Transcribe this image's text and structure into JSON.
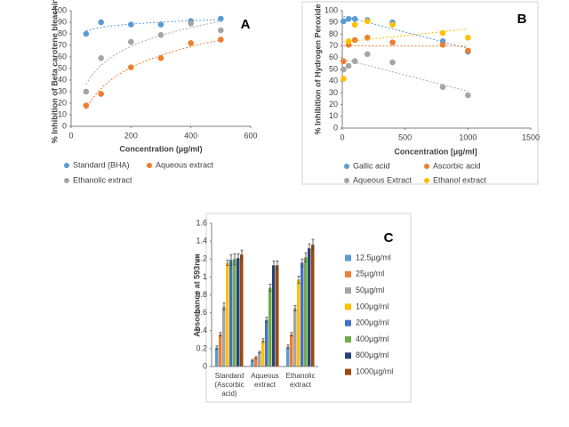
{
  "chart_data": [
    {
      "type": "scatter",
      "title": "A",
      "x_label": "Concentration (µg/ml)",
      "y_label": "% Inhibition of Beta carotene bleaching",
      "x": [
        50,
        100,
        200,
        300,
        400,
        500
      ],
      "xlim": [
        0,
        600
      ],
      "xticks": [
        0,
        200,
        400,
        600
      ],
      "ylim": [
        0,
        100
      ],
      "yticks": [
        0,
        10,
        20,
        30,
        40,
        50,
        60,
        70,
        80,
        90,
        100
      ],
      "trendline": "logarithmic",
      "series": [
        {
          "name": "Standard (BHA)",
          "color": "#5b9bd5",
          "values": [
            80,
            90,
            88,
            88,
            91,
            93
          ]
        },
        {
          "name": "Aqueous extract",
          "color": "#ed7d31",
          "values": [
            18,
            28,
            51,
            59,
            72,
            75
          ]
        },
        {
          "name": "Ethanolic extract",
          "color": "#a5a5a5",
          "values": [
            30,
            59,
            73,
            79,
            89,
            83
          ]
        }
      ]
    },
    {
      "type": "scatter",
      "title": "B",
      "x_label": "Concentration [µg/ml]",
      "y_label": "% Inhibition of Hydrogen Peroxide",
      "x": [
        10,
        50,
        100,
        200,
        400,
        800,
        1000
      ],
      "xlim": [
        0,
        1500
      ],
      "xticks": [
        0,
        500,
        1000,
        1500
      ],
      "ylim": [
        0,
        100
      ],
      "yticks": [
        0,
        10,
        20,
        30,
        40,
        50,
        60,
        70,
        80,
        90,
        100
      ],
      "trendline": "linear",
      "series": [
        {
          "name": "Gallic acid",
          "color": "#5b9bd5",
          "values": [
            91,
            93,
            93,
            92,
            90,
            74,
            65
          ]
        },
        {
          "name": "Ascorbic acid",
          "color": "#ed7d31",
          "values": [
            57,
            71,
            75,
            77,
            73,
            71,
            66
          ]
        },
        {
          "name": "Aqueous Extract",
          "color": "#a5a5a5",
          "values": [
            50,
            53,
            57,
            63,
            56,
            35,
            28
          ]
        },
        {
          "name": "Ethanol extract",
          "color": "#ffc000",
          "values": [
            42,
            74,
            88,
            91,
            88,
            81,
            77
          ]
        }
      ]
    },
    {
      "type": "bar",
      "title": "C",
      "y_label": "Absorbance at 593nm",
      "categories": [
        "Standard (Ascorbic acid)",
        "Aqueous extract",
        "Ethanolic extract"
      ],
      "ylim": [
        0,
        1.6
      ],
      "yticks": [
        0,
        0.2,
        0.4,
        0.6,
        0.8,
        1,
        1.2,
        1.4,
        1.6
      ],
      "series": [
        {
          "name": "12.5µg/ml",
          "color": "#5b9bd5",
          "values": [
            0.21,
            0.07,
            0.22
          ],
          "errors": [
            0.02,
            0.01,
            0.02
          ]
        },
        {
          "name": "25µg/ml",
          "color": "#ed7d31",
          "values": [
            0.36,
            0.1,
            0.36
          ],
          "errors": [
            0.02,
            0.01,
            0.02
          ]
        },
        {
          "name": "50µg/ml",
          "color": "#a5a5a5",
          "values": [
            0.67,
            0.16,
            0.65
          ],
          "errors": [
            0.04,
            0.01,
            0.03
          ]
        },
        {
          "name": "100µg/ml",
          "color": "#ffc000",
          "values": [
            1.16,
            0.29,
            0.97
          ],
          "errors": [
            0.03,
            0.02,
            0.04
          ]
        },
        {
          "name": "200µg/ml",
          "color": "#4472c4",
          "values": [
            1.19,
            0.52,
            1.16
          ],
          "errors": [
            0.06,
            0.03,
            0.04
          ]
        },
        {
          "name": "400µg/ml",
          "color": "#70ad47",
          "values": [
            1.2,
            0.88,
            1.22
          ],
          "errors": [
            0.06,
            0.04,
            0.05
          ]
        },
        {
          "name": "800µg/ml",
          "color": "#264478",
          "values": [
            1.21,
            1.13,
            1.32
          ],
          "errors": [
            0.05,
            0.05,
            0.05
          ]
        },
        {
          "name": "1000µg/ml",
          "color": "#9e480e",
          "values": [
            1.25,
            1.13,
            1.36
          ],
          "errors": [
            0.05,
            0.05,
            0.06
          ]
        }
      ]
    }
  ]
}
